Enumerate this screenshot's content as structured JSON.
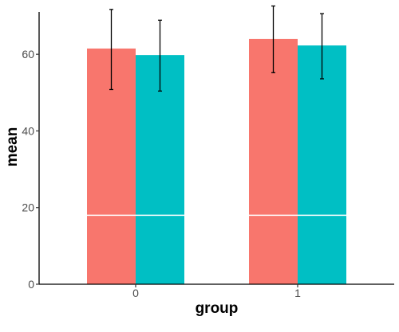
{
  "chart_data": {
    "type": "bar",
    "title": "",
    "xlabel": "group",
    "ylabel": "mean",
    "categories": [
      "0",
      "1"
    ],
    "series": [
      {
        "values": [
          61.5,
          64.0
        ],
        "err_low": [
          50.8,
          55.2
        ],
        "err_high": [
          71.7,
          72.6
        ]
      },
      {
        "values": [
          59.8,
          62.3
        ],
        "err_low": [
          50.4,
          53.6
        ],
        "err_high": [
          68.9,
          70.6
        ]
      }
    ],
    "reference_line_value": 18,
    "ylim": [
      0,
      72.5
    ],
    "y_ticks": [
      "0",
      "20",
      "40",
      "60"
    ],
    "grid": false,
    "legend": "none",
    "colors": {
      "series": [
        "#F8766D",
        "#00BFC4"
      ],
      "reference_line": "#ffffff",
      "axis": "#000000",
      "error_bar": "#000000"
    }
  }
}
